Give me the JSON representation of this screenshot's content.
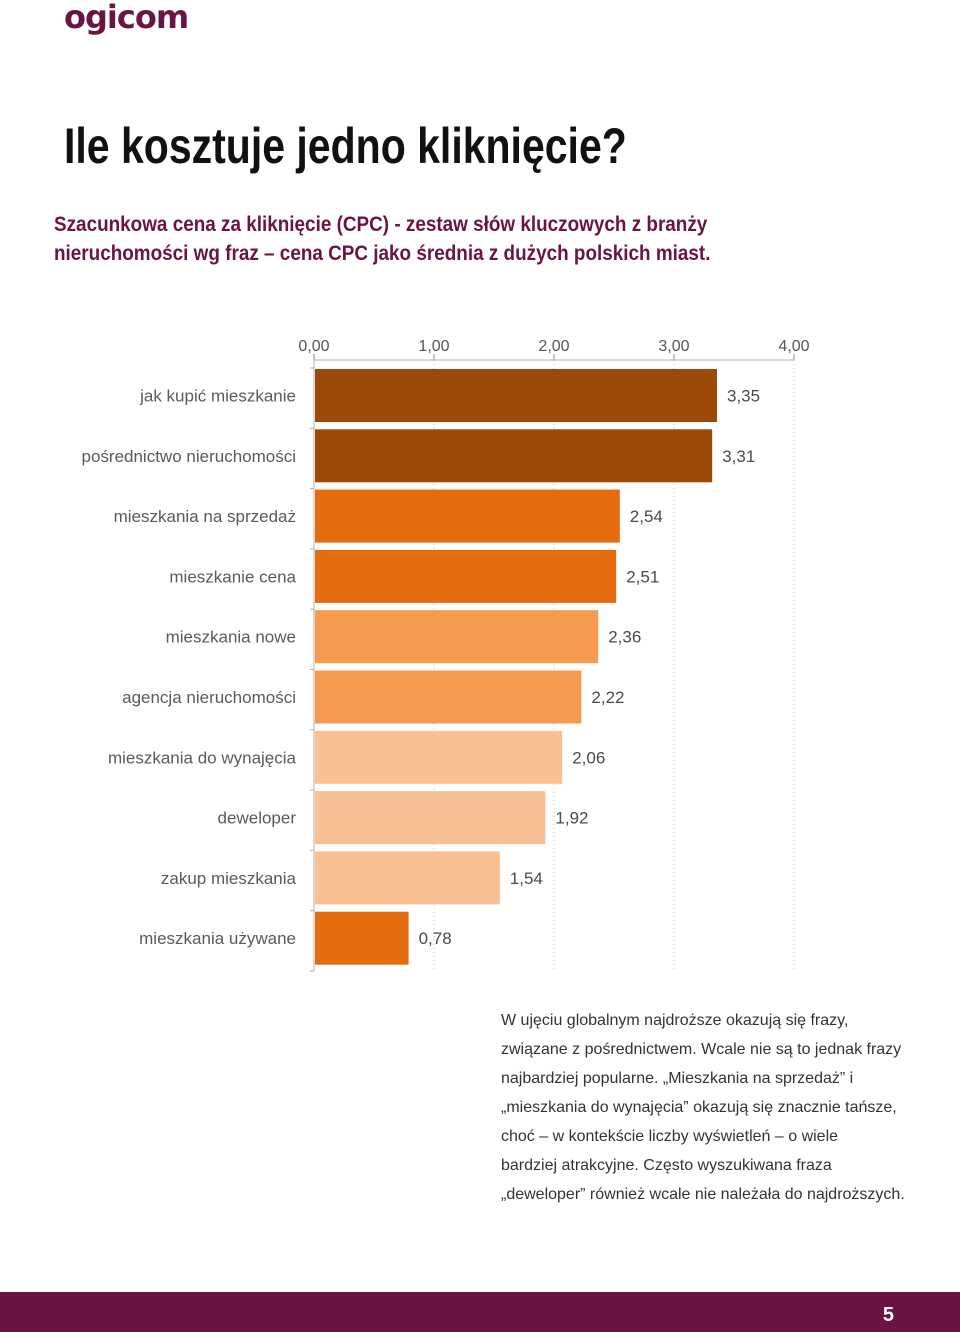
{
  "header": {
    "logo": "ogicom",
    "title": "Ile kosztuje jedno kliknięcie?",
    "subtitle_lines": [
      "Szacunkowa cena za kliknięcie (CPC)  - zestaw słów kluczowych z branży",
      "nieruchomości wg fraz – cena CPC jako średnia z dużych polskich miast."
    ]
  },
  "chart_data": {
    "type": "bar",
    "orientation": "horizontal",
    "title": "",
    "xlabel": "",
    "ylabel": "",
    "xlim": [
      0,
      4
    ],
    "ticks": [
      0,
      1,
      2,
      3,
      4
    ],
    "tick_labels": [
      "0,00",
      "1,00",
      "2,00",
      "3,00",
      "4,00"
    ],
    "axis_position": "top",
    "grid": "vertical dotted",
    "legend": "none",
    "categories": [
      "jak kupić mieszkanie",
      "pośrednictwo nieruchomości",
      "mieszkania na sprzedaż",
      "mieszkanie cena",
      "mieszkania nowe",
      "agencja nieruchomości",
      "mieszkania do wynajęcia",
      "deweloper",
      "zakup mieszkania",
      "mieszkania używane"
    ],
    "values": [
      3.35,
      3.31,
      2.54,
      2.51,
      2.36,
      2.22,
      2.06,
      1.92,
      1.54,
      0.78
    ],
    "value_labels": [
      "3,35",
      "3,31",
      "2,54",
      "2,51",
      "2,36",
      "2,22",
      "2,06",
      "1,92",
      "1,54",
      "0,78"
    ],
    "colors": [
      "#9b4a0a",
      "#9b4a0a",
      "#e46c0f",
      "#e46c0f",
      "#f59a4e",
      "#f59a4e",
      "#f9c094",
      "#f9c094",
      "#f9c094",
      "#e46c0f"
    ]
  },
  "note_lines": [
    "W ujęciu globalnym najdroższe okazują się frazy,",
    "związane z pośrednictwem. Wcale nie są to jednak frazy",
    "najbardziej popularne. „Mieszkania na sprzedaż” i",
    "„mieszkania do wynajęcia” okazują się znacznie tańsze,",
    "choć – w kontekście liczby wyświetleń – o wiele",
    "bardziej atrakcyjne. Często wyszukiwana fraza",
    "„deweloper” również wcale nie należała do najdroższych."
  ],
  "footer": {
    "page_number": "5"
  },
  "colors": {
    "brand": "#6b1444"
  }
}
